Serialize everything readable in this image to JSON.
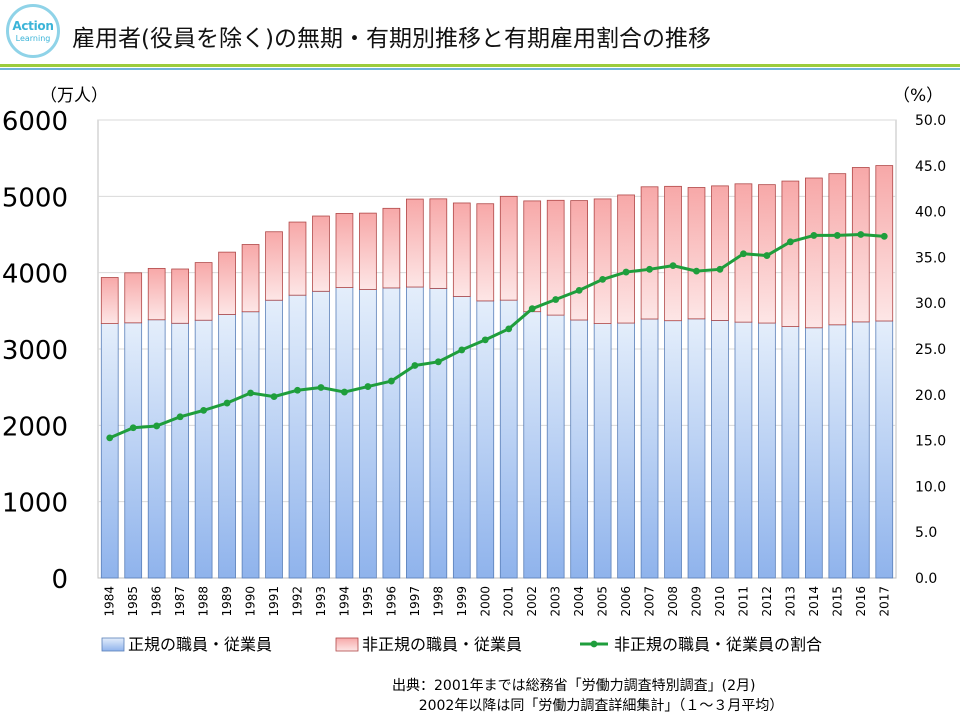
{
  "header": {
    "title": "雇用者(役員を除く)の無期・有期別推移と有期雇用割合の推移",
    "logo_top": "Action",
    "logo_bottom": "Learning"
  },
  "chart_data": {
    "type": "bar",
    "stacked": true,
    "title": "雇用者(役員を除く)の無期・有期別推移と有期雇用割合の推移",
    "left_axis_unit": "（万人）",
    "right_axis_unit": "（%）",
    "categories": [
      "1984",
      "1985",
      "1986",
      "1987",
      "1988",
      "1989",
      "1990",
      "1991",
      "1992",
      "1993",
      "1994",
      "1995",
      "1996",
      "1997",
      "1998",
      "1999",
      "2000",
      "2001",
      "2002",
      "2003",
      "2004",
      "2005",
      "2006",
      "2007",
      "2008",
      "2009",
      "2010",
      "2011",
      "2012",
      "2013",
      "2014",
      "2015",
      "2016",
      "2017"
    ],
    "ylim": [
      0,
      6000
    ],
    "yticks": [
      "0",
      "1000",
      "2000",
      "3000",
      "4000",
      "5000",
      "6000"
    ],
    "y2lim": [
      0,
      50
    ],
    "y2ticks": [
      "0.0",
      "5.0",
      "10.0",
      "15.0",
      "20.0",
      "25.0",
      "30.0",
      "35.0",
      "40.0",
      "45.0",
      "50.0"
    ],
    "series": [
      {
        "name": "正規の職員・従業員",
        "kind": "bar",
        "color": "#a8c8f0",
        "values": [
          3333,
          3343,
          3383,
          3337,
          3377,
          3452,
          3488,
          3639,
          3705,
          3756,
          3805,
          3779,
          3800,
          3812,
          3794,
          3688,
          3630,
          3640,
          3489,
          3444,
          3380,
          3333,
          3340,
          3393,
          3371,
          3395,
          3374,
          3352,
          3340,
          3294,
          3278,
          3317,
          3355,
          3367
        ]
      },
      {
        "name": "非正規の職員・従業員",
        "kind": "bar",
        "color": "#f8b0b0",
        "values": [
          604,
          655,
          673,
          711,
          755,
          817,
          881,
          897,
          958,
          986,
          971,
          1001,
          1043,
          1152,
          1173,
          1225,
          1273,
          1360,
          1451,
          1504,
          1564,
          1633,
          1678,
          1732,
          1760,
          1721,
          1763,
          1812,
          1813,
          1906,
          1962,
          1980,
          2023,
          2036
        ]
      },
      {
        "name": "非正規の職員・従業員の割合",
        "kind": "line",
        "axis": "right",
        "color": "#1f9e3c",
        "values": [
          15.3,
          16.4,
          16.6,
          17.6,
          18.3,
          19.1,
          20.2,
          19.8,
          20.5,
          20.8,
          20.3,
          20.9,
          21.5,
          23.2,
          23.6,
          24.9,
          26.0,
          27.2,
          29.4,
          30.4,
          31.4,
          32.6,
          33.4,
          33.7,
          34.1,
          33.5,
          33.7,
          35.4,
          35.2,
          36.7,
          37.4,
          37.4,
          37.5,
          37.3
        ]
      }
    ],
    "legend_position": "bottom"
  },
  "source": {
    "line1": "出典：2001年までは総務省「労働力調査特別調査」(2月)",
    "line2": "      2002年以降は同「労働力調査詳細集計」（１～３月平均）"
  }
}
